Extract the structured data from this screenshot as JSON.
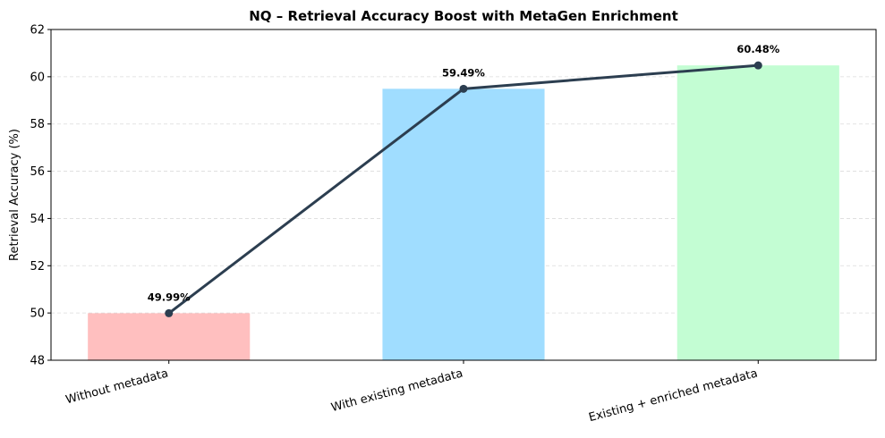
{
  "chart_data": {
    "type": "bar",
    "title": "NQ – Retrieval Accuracy Boost with MetaGen Enrichment",
    "xlabel": "",
    "ylabel": "Retrieval Accuracy (%)",
    "ylim": [
      48,
      62
    ],
    "yticks": [
      48,
      50,
      52,
      54,
      56,
      58,
      60,
      62
    ],
    "grid": true,
    "legend": "none",
    "categories": [
      "Without metadata",
      "With existing metadata",
      "Existing + enriched metadata"
    ],
    "values": [
      49.99,
      59.49,
      60.48
    ],
    "data_labels": [
      "49.99%",
      "59.49%",
      "60.48%"
    ],
    "bar_colors": [
      "#ffbfbf",
      "#a0ddff",
      "#c3fdd3"
    ],
    "overlay_line": {
      "type": "line",
      "values": [
        49.99,
        59.49,
        60.48
      ],
      "color": "#2c3e50",
      "marker": "circle"
    }
  }
}
